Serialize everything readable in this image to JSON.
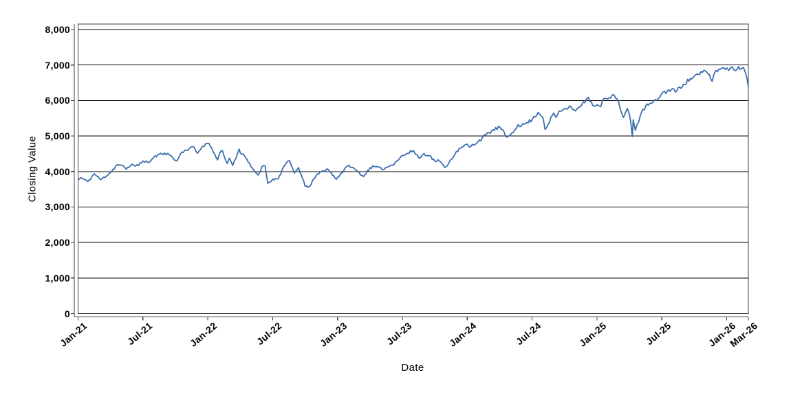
{
  "chart_data": {
    "type": "line",
    "title": "",
    "xlabel": "Date",
    "ylabel": "Closing Value",
    "legend": "none",
    "grid": "horizontal-black-lines",
    "x_tick_labels": [
      "Jan-21",
      "Jul-21",
      "Jan-22",
      "Jul-22",
      "Jan-23",
      "Jul-23",
      "Jan-24",
      "Jul-24",
      "Jan-25",
      "Jul-25",
      "Jan-26",
      "Mar-26"
    ],
    "x_tick_month_index": [
      0,
      6,
      12,
      18,
      24,
      30,
      36,
      42,
      48,
      54,
      60,
      62
    ],
    "x_range_months": [
      0,
      62
    ],
    "y_ticks": [
      0,
      1000,
      2000,
      3000,
      4000,
      5000,
      6000,
      7000,
      8000
    ],
    "y_tick_labels": [
      "0",
      "1,000",
      "2,000",
      "3,000",
      "4,000",
      "5,000",
      "6,000",
      "7,000",
      "8,000"
    ],
    "ylim": [
      0,
      8155
    ],
    "line_color": "#3A6DAE",
    "line_width": 1.8,
    "grid_color": "#000000",
    "frame_color": "#3d3d3d",
    "noise": {
      "amplitude_pct": 0.9,
      "step_months": 0.12,
      "seed": 11
    },
    "series": [
      {
        "name": "Closing Value",
        "color": "#3A6DAE",
        "points_month_value": [
          [
            0,
            3760
          ],
          [
            0.25,
            3826
          ],
          [
            0.9,
            3714
          ],
          [
            1.5,
            3935
          ],
          [
            2.1,
            3768
          ],
          [
            3,
            3973
          ],
          [
            3.6,
            4186
          ],
          [
            4,
            4181
          ],
          [
            4.45,
            4063
          ],
          [
            5,
            4204
          ],
          [
            5.6,
            4166
          ],
          [
            6,
            4298
          ],
          [
            6.6,
            4258
          ],
          [
            7,
            4395
          ],
          [
            7.5,
            4480
          ],
          [
            8,
            4523
          ],
          [
            8.6,
            4444
          ],
          [
            9,
            4308
          ],
          [
            9.15,
            4300
          ],
          [
            9.6,
            4550
          ],
          [
            10,
            4605
          ],
          [
            10.6,
            4705
          ],
          [
            11.05,
            4513
          ],
          [
            11.5,
            4713
          ],
          [
            11.95,
            4793
          ],
          [
            12.1,
            4797
          ],
          [
            12.9,
            4327
          ],
          [
            13.1,
            4516
          ],
          [
            13.35,
            4589
          ],
          [
            13.8,
            4225
          ],
          [
            14,
            4374
          ],
          [
            14.3,
            4170
          ],
          [
            14.9,
            4631
          ],
          [
            15,
            4530
          ],
          [
            15.5,
            4392
          ],
          [
            16,
            4132
          ],
          [
            16.65,
            3900
          ],
          [
            17,
            4132
          ],
          [
            17.3,
            4158
          ],
          [
            17.55,
            3667
          ],
          [
            18,
            3785
          ],
          [
            18.5,
            3790
          ],
          [
            19,
            4130
          ],
          [
            19.55,
            4305
          ],
          [
            20,
            3955
          ],
          [
            20.4,
            4110
          ],
          [
            21,
            3586
          ],
          [
            21.4,
            3577
          ],
          [
            22,
            3872
          ],
          [
            22.5,
            3992
          ],
          [
            23.05,
            4076
          ],
          [
            23.9,
            3783
          ],
          [
            24,
            3840
          ],
          [
            25.05,
            4180
          ],
          [
            26,
            3970
          ],
          [
            26.4,
            3855
          ],
          [
            27,
            4109
          ],
          [
            27.5,
            4137
          ],
          [
            28.1,
            4061
          ],
          [
            29,
            4180
          ],
          [
            29.5,
            4300
          ],
          [
            30,
            4450
          ],
          [
            30.5,
            4510
          ],
          [
            31,
            4589
          ],
          [
            31.6,
            4370
          ],
          [
            32,
            4508
          ],
          [
            32.5,
            4450
          ],
          [
            33,
            4288
          ],
          [
            33.3,
            4330
          ],
          [
            33.9,
            4117
          ],
          [
            34.3,
            4240
          ],
          [
            35,
            4568
          ],
          [
            36,
            4770
          ],
          [
            36.2,
            4689
          ],
          [
            37,
            4846
          ],
          [
            38,
            5096
          ],
          [
            39,
            5254
          ],
          [
            39.65,
            4967
          ],
          [
            40,
            5036
          ],
          [
            40.7,
            5321
          ],
          [
            41,
            5278
          ],
          [
            41.4,
            5354
          ],
          [
            42,
            5460
          ],
          [
            42.55,
            5667
          ],
          [
            43,
            5522
          ],
          [
            43.2,
            5186
          ],
          [
            44,
            5648
          ],
          [
            44.2,
            5528
          ],
          [
            44.6,
            5702
          ],
          [
            45,
            5762
          ],
          [
            45.6,
            5815
          ],
          [
            46,
            5705
          ],
          [
            46.2,
            5782
          ],
          [
            47,
            6032
          ],
          [
            47.2,
            6090
          ],
          [
            47.6,
            5867
          ],
          [
            48,
            5882
          ],
          [
            48.35,
            5827
          ],
          [
            48.6,
            6049
          ],
          [
            49,
            6041
          ],
          [
            49.6,
            6144
          ],
          [
            50,
            5955
          ],
          [
            50.45,
            5522
          ],
          [
            50.8,
            5777
          ],
          [
            51,
            5612
          ],
          [
            51.12,
            5396
          ],
          [
            51.27,
            4983
          ],
          [
            51.35,
            5457
          ],
          [
            51.55,
            5158
          ],
          [
            52,
            5569
          ],
          [
            52.5,
            5845
          ],
          [
            53,
            5912
          ],
          [
            53.5,
            6000
          ],
          [
            54,
            6205
          ],
          [
            54.5,
            6260
          ],
          [
            55,
            6339
          ],
          [
            55.25,
            6240
          ],
          [
            56,
            6460
          ],
          [
            57,
            6688
          ],
          [
            57.5,
            6735
          ],
          [
            58,
            6840
          ],
          [
            58.4,
            6728
          ],
          [
            58.65,
            6538
          ],
          [
            59,
            6849
          ],
          [
            59.5,
            6900
          ],
          [
            60,
            6920
          ],
          [
            60.2,
            6850
          ],
          [
            60.5,
            6950
          ],
          [
            60.8,
            6840
          ],
          [
            61.1,
            6955
          ],
          [
            61.35,
            6900
          ],
          [
            61.55,
            6930
          ],
          [
            61.75,
            6760
          ],
          [
            62,
            6390
          ]
        ]
      }
    ]
  }
}
